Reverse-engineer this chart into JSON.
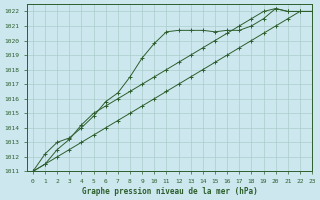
{
  "title": "Graphe pression niveau de la mer (hPa)",
  "xlabel_hours": [
    0,
    1,
    2,
    3,
    4,
    5,
    6,
    7,
    8,
    9,
    10,
    11,
    12,
    13,
    14,
    15,
    16,
    17,
    18,
    19,
    20,
    21,
    22,
    23
  ],
  "ylim": [
    1011,
    1022.5
  ],
  "xlim": [
    -0.5,
    23
  ],
  "yticks": [
    1011,
    1012,
    1013,
    1014,
    1015,
    1016,
    1017,
    1018,
    1019,
    1020,
    1021,
    1022
  ],
  "background_color": "#cce8ee",
  "grid_color": "#aacccc",
  "line_color": "#2d5e2d",
  "line1": [
    1011.0,
    1012.2,
    1013.0,
    1013.3,
    1014.0,
    1014.8,
    1015.8,
    1016.4,
    1017.5,
    1018.8,
    1019.8,
    1020.6,
    1020.7,
    1020.7,
    1020.7,
    1020.6,
    1020.7,
    1020.7,
    1021.0,
    1021.5,
    1022.2,
    1022.0,
    1022.0,
    1022.0
  ],
  "line2": [
    1011.0,
    1011.5,
    1012.0,
    1012.5,
    1013.0,
    1013.5,
    1014.0,
    1014.5,
    1015.0,
    1015.5,
    1016.0,
    1016.5,
    1017.0,
    1017.5,
    1018.0,
    1018.5,
    1019.0,
    1019.5,
    1020.0,
    1020.5,
    1021.0,
    1021.5,
    1022.0,
    1022.0
  ],
  "line3": [
    1011.0,
    1011.5,
    1012.5,
    1013.2,
    1014.2,
    1015.0,
    1015.5,
    1016.0,
    1016.5,
    1017.0,
    1017.5,
    1018.0,
    1018.5,
    1019.0,
    1019.5,
    1020.0,
    1020.5,
    1021.0,
    1021.5,
    1022.0,
    1022.2,
    1022.0,
    1022.0,
    1022.0
  ],
  "figsize": [
    3.2,
    2.0
  ],
  "dpi": 100
}
